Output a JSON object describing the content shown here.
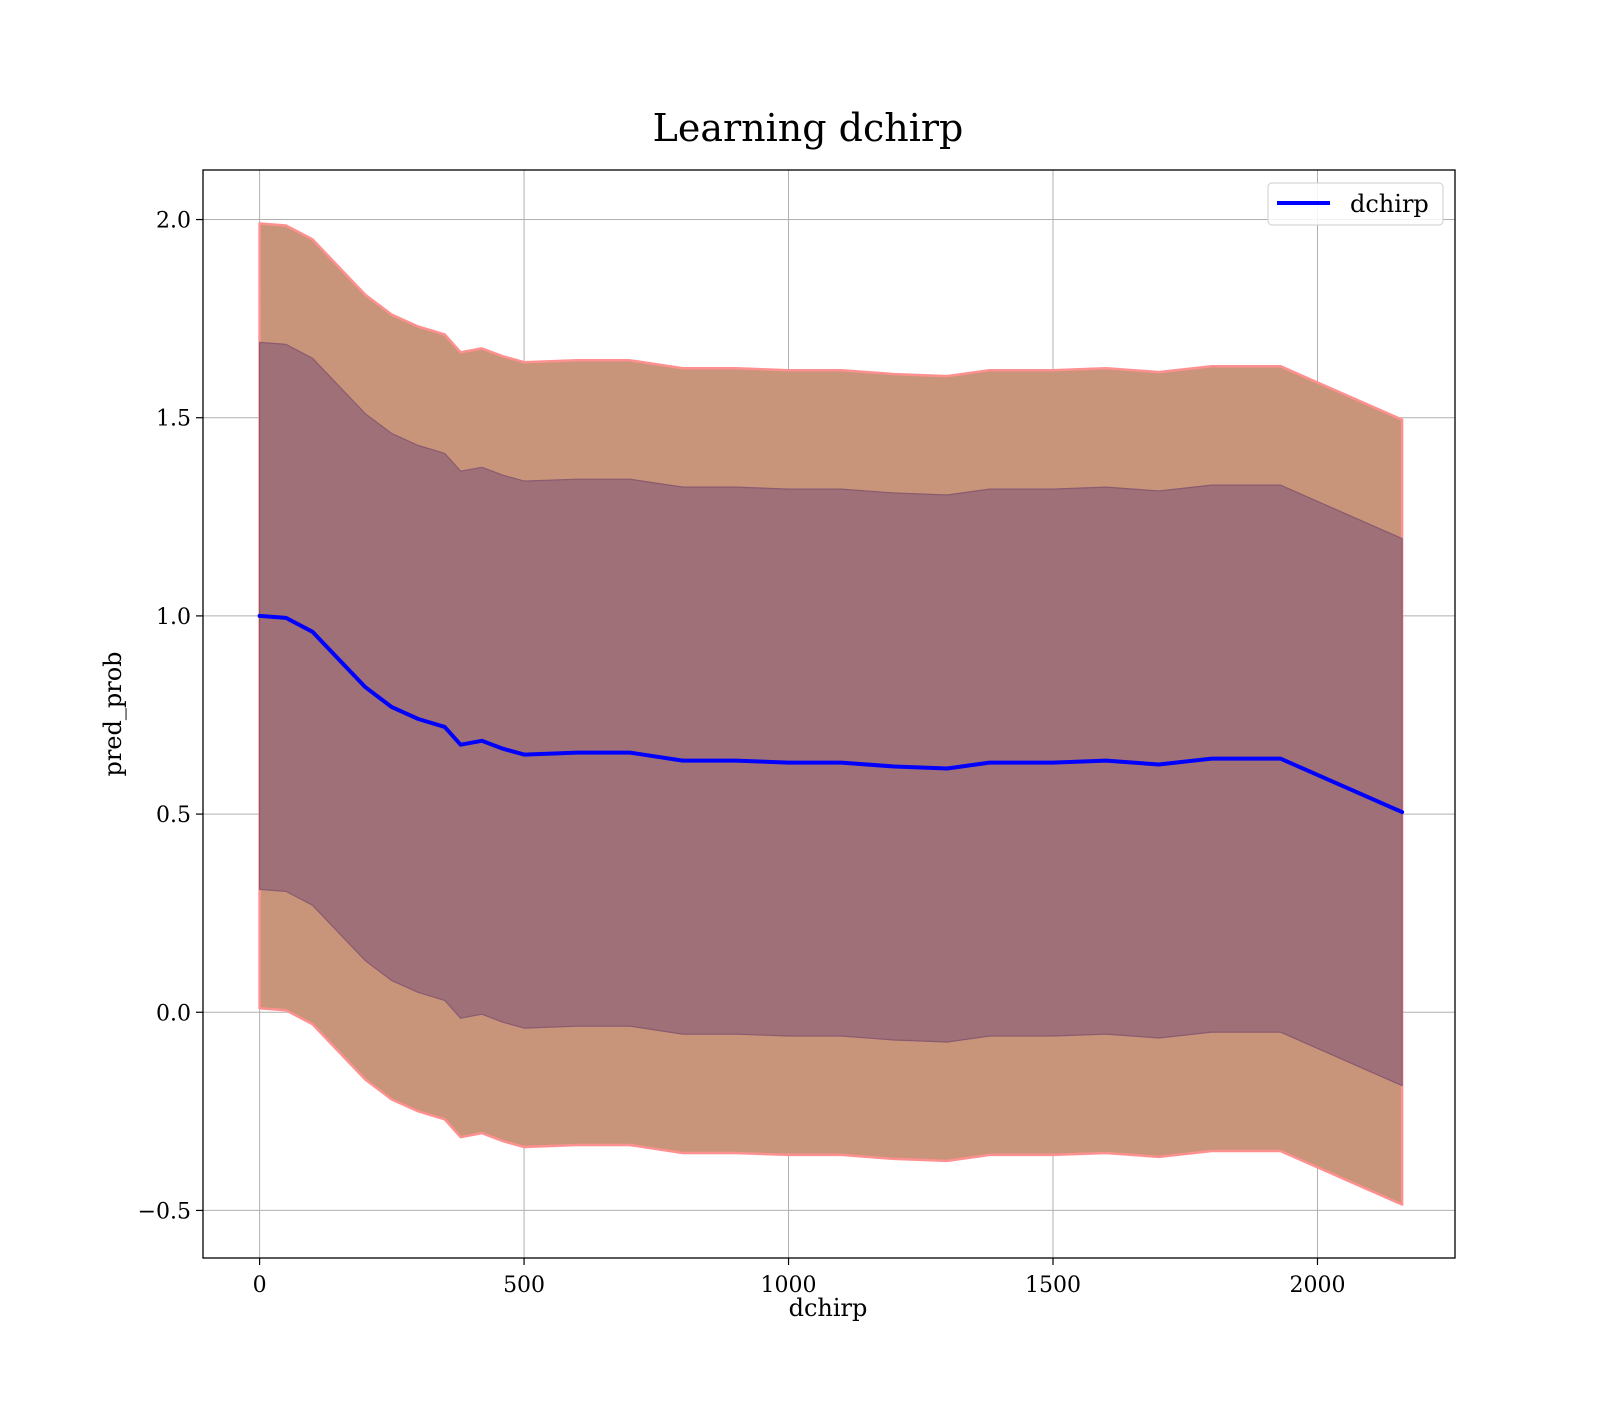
{
  "chart_data": {
    "type": "area",
    "title": "Learning dchirp",
    "xlabel": "dchirp",
    "ylabel": "pred_prob",
    "xlim": [
      -107,
      2260
    ],
    "ylim": [
      -0.62,
      2.125
    ],
    "xticks": [
      0,
      500,
      1000,
      1500,
      2000
    ],
    "xtick_labels": [
      "0",
      "500",
      "1000",
      "1500",
      "2000"
    ],
    "yticks": [
      -0.5,
      0.0,
      0.5,
      1.0,
      1.5,
      2.0
    ],
    "ytick_labels": [
      "−0.5",
      "0.0",
      "0.5",
      "1.0",
      "1.5",
      "2.0"
    ],
    "grid": true,
    "legend": {
      "position": "top-right",
      "entries": [
        "dchirp"
      ]
    },
    "colors": {
      "mean_line": "#0000ff",
      "outer_band_fill": "#c8957a",
      "outer_band_edge": "#ff9090",
      "inner_band_fill": "#a07078",
      "inner_band_edge": "#8a5a70",
      "grid": "#b0b0b0"
    },
    "x": [
      0,
      50,
      100,
      150,
      200,
      250,
      300,
      350,
      380,
      420,
      460,
      500,
      600,
      700,
      800,
      900,
      1000,
      1100,
      1200,
      1300,
      1380,
      1500,
      1600,
      1700,
      1800,
      1930,
      2160
    ],
    "series": [
      {
        "name": "dchirp",
        "values": [
          1.0,
          0.995,
          0.96,
          0.89,
          0.82,
          0.77,
          0.74,
          0.72,
          0.675,
          0.685,
          0.665,
          0.65,
          0.655,
          0.655,
          0.635,
          0.635,
          0.63,
          0.63,
          0.62,
          0.615,
          0.63,
          0.63,
          0.635,
          0.625,
          0.64,
          0.64,
          0.505
        ],
        "band_1sd": {
          "upper": [
            1.69,
            1.685,
            1.65,
            1.58,
            1.51,
            1.46,
            1.43,
            1.41,
            1.365,
            1.375,
            1.355,
            1.34,
            1.345,
            1.345,
            1.325,
            1.325,
            1.32,
            1.32,
            1.31,
            1.305,
            1.32,
            1.32,
            1.325,
            1.315,
            1.33,
            1.33,
            1.195
          ],
          "lower": [
            0.31,
            0.305,
            0.27,
            0.2,
            0.13,
            0.08,
            0.05,
            0.03,
            -0.015,
            -0.005,
            -0.025,
            -0.04,
            -0.035,
            -0.035,
            -0.055,
            -0.055,
            -0.06,
            -0.06,
            -0.07,
            -0.075,
            -0.06,
            -0.06,
            -0.055,
            -0.065,
            -0.05,
            -0.05,
            -0.185
          ]
        },
        "band_2sd": {
          "upper": [
            1.99,
            1.985,
            1.95,
            1.88,
            1.81,
            1.76,
            1.73,
            1.71,
            1.665,
            1.675,
            1.655,
            1.64,
            1.645,
            1.645,
            1.625,
            1.625,
            1.62,
            1.62,
            1.61,
            1.605,
            1.62,
            1.62,
            1.625,
            1.615,
            1.63,
            1.63,
            1.495
          ],
          "lower": [
            0.01,
            0.005,
            -0.03,
            -0.1,
            -0.17,
            -0.22,
            -0.25,
            -0.27,
            -0.315,
            -0.305,
            -0.325,
            -0.34,
            -0.335,
            -0.335,
            -0.355,
            -0.355,
            -0.36,
            -0.36,
            -0.37,
            -0.375,
            -0.36,
            -0.36,
            -0.355,
            -0.365,
            -0.35,
            -0.35,
            -0.485
          ]
        }
      }
    ]
  }
}
